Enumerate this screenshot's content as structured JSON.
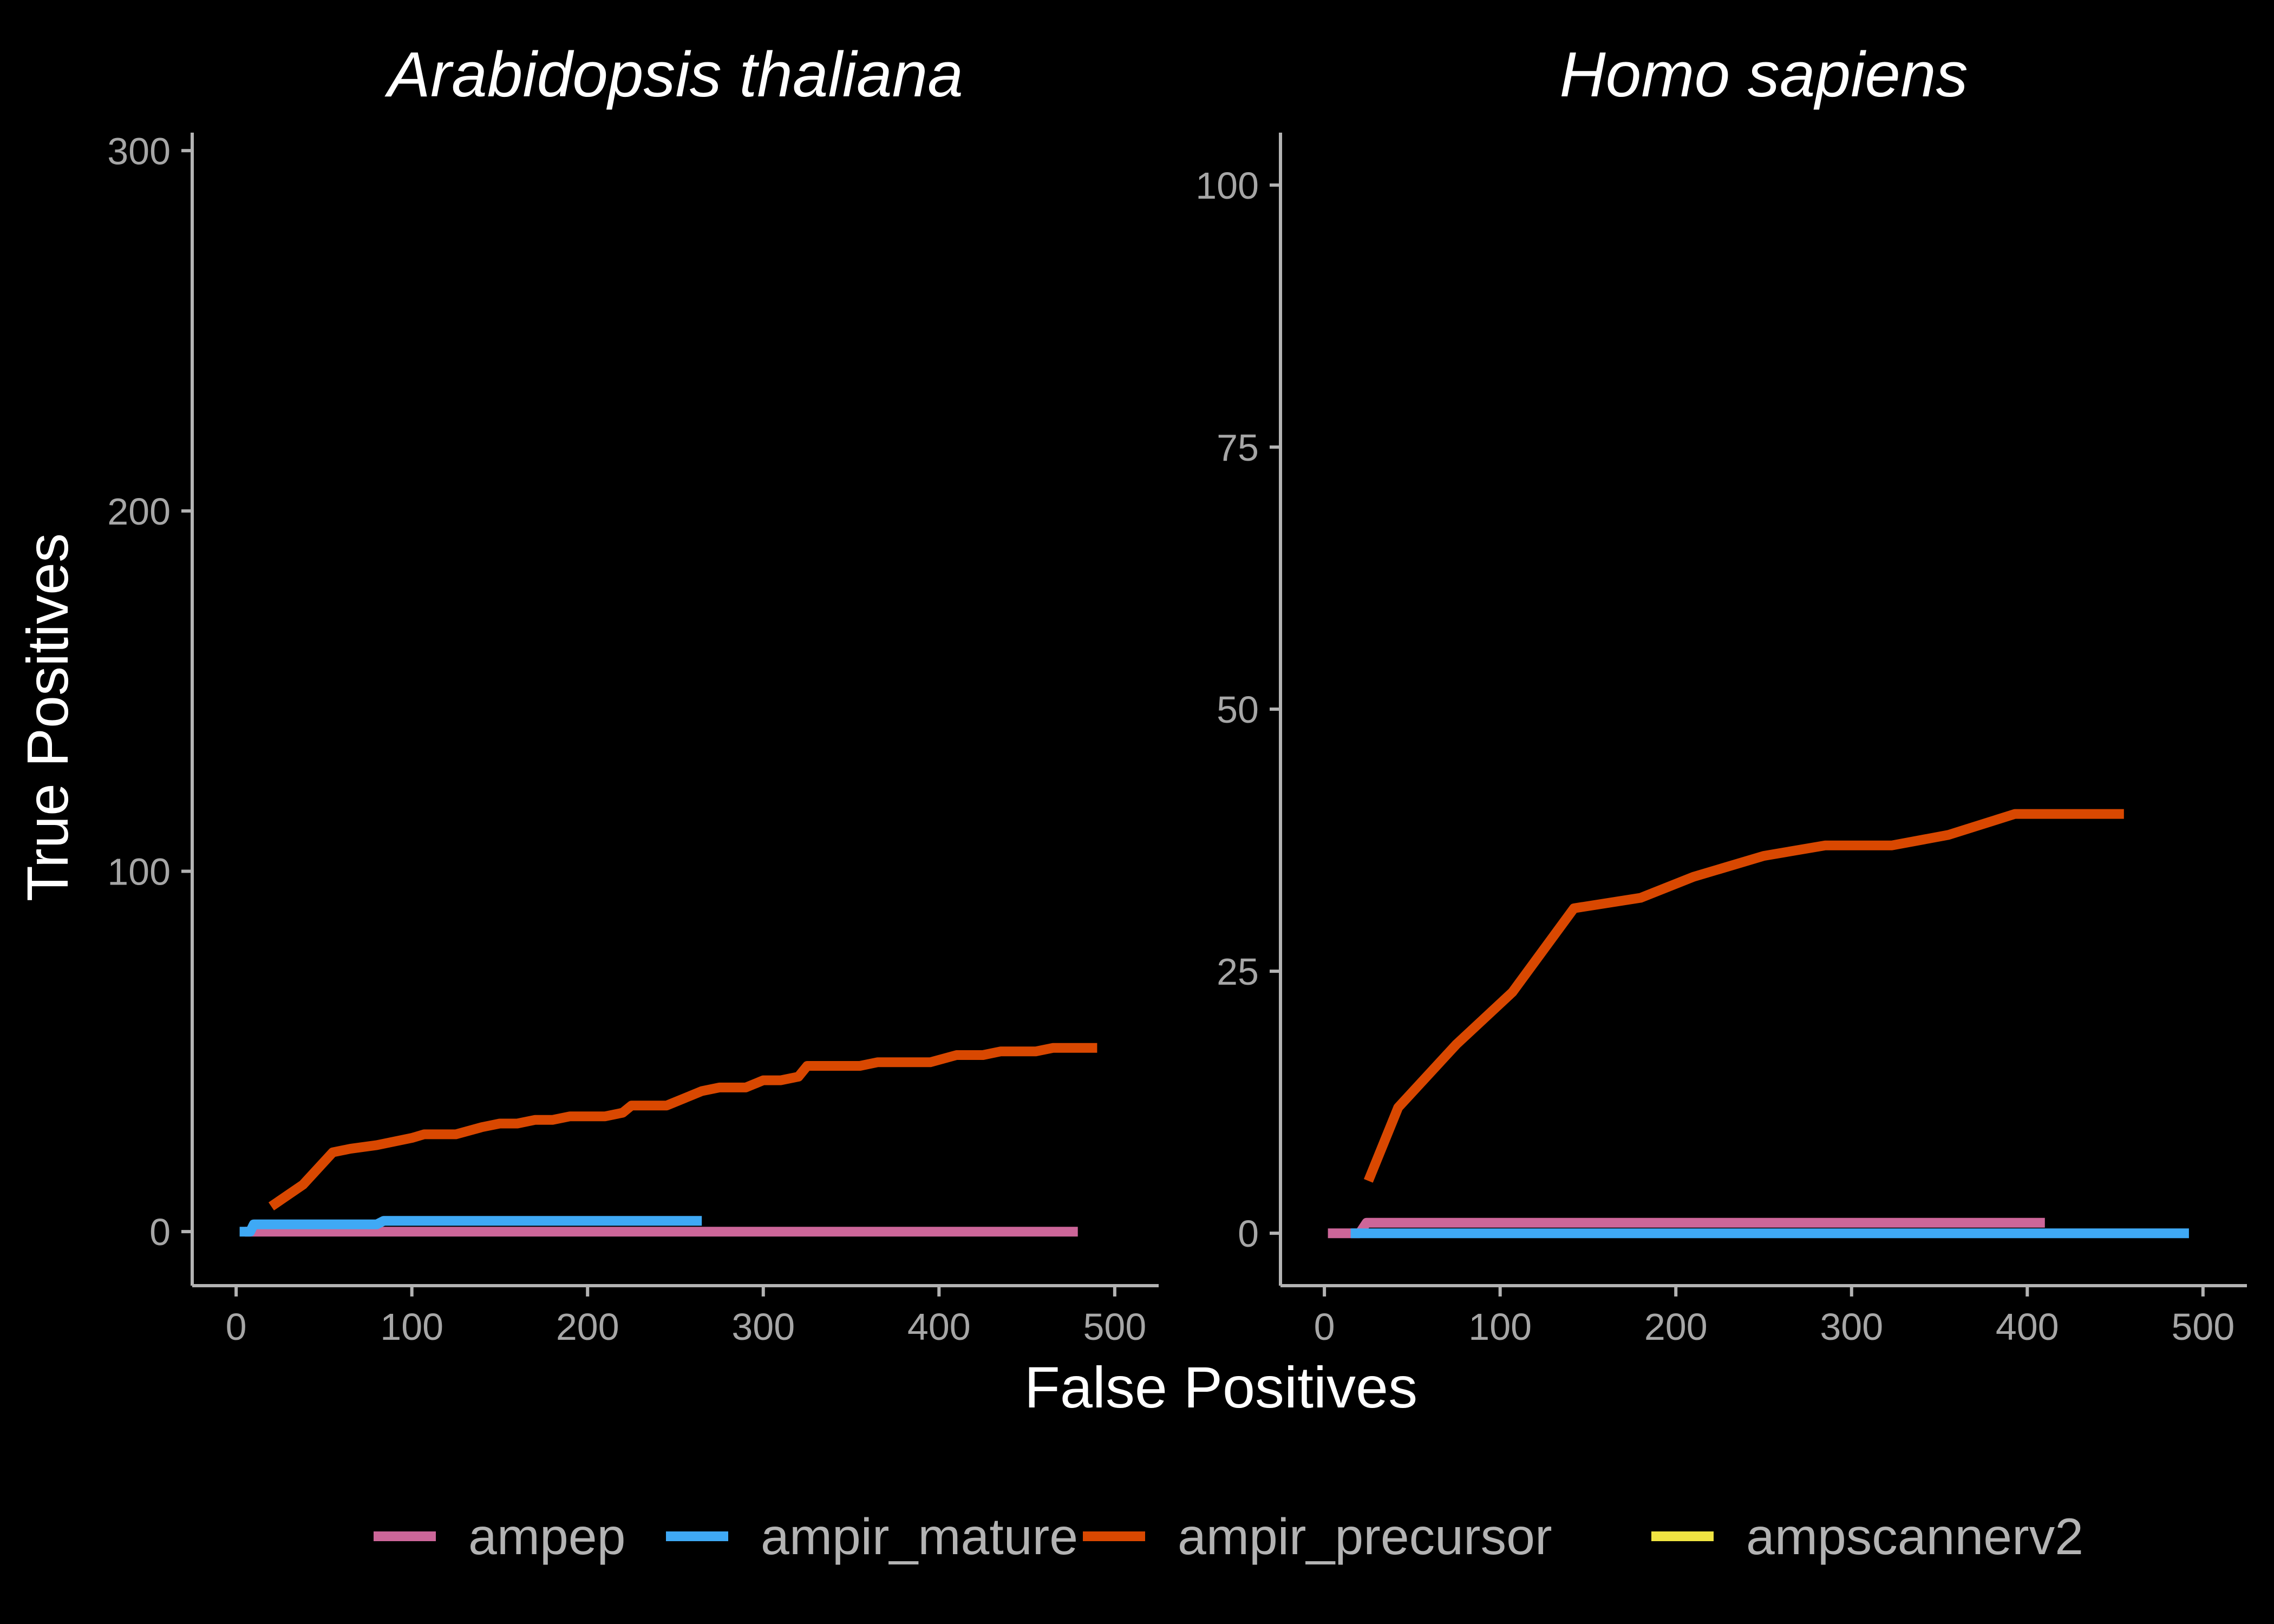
{
  "chart_data": {
    "type": "line",
    "xlabel": "False Positives",
    "ylabel": "True Positives",
    "legend": {
      "placement": "bottom",
      "entries": [
        {
          "name": "ampep",
          "color": "#cc6699"
        },
        {
          "name": "ampir_mature",
          "color": "#3fa9f5"
        },
        {
          "name": "ampir_precursor",
          "color": "#d94801"
        },
        {
          "name": "ampscannerv2",
          "color": "#f0e442"
        }
      ]
    },
    "panels": [
      {
        "title": "Arabidopsis thaliana",
        "xlim": [
          -25,
          525
        ],
        "ylim": [
          -15,
          305
        ],
        "xticks": [
          0,
          100,
          200,
          300,
          400,
          500
        ],
        "yticks": [
          0,
          100,
          200,
          300
        ],
        "series": [
          {
            "name": "ampep",
            "color": "#cc6699",
            "points": [
              [
                5,
                0
              ],
              [
                479,
                0
              ]
            ]
          },
          {
            "name": "ampir_mature",
            "color": "#3fa9f5",
            "points": [
              [
                2,
                0
              ],
              [
                8,
                0
              ],
              [
                10,
                2
              ],
              [
                80,
                2
              ],
              [
                84,
                3
              ],
              [
                265,
                3
              ]
            ]
          },
          {
            "name": "ampir_precursor",
            "color": "#d94801",
            "points": [
              [
                20,
                7
              ],
              [
                38,
                13
              ],
              [
                55,
                22
              ],
              [
                65,
                23
              ],
              [
                80,
                24
              ],
              [
                100,
                26
              ],
              [
                107,
                27
              ],
              [
                125,
                27
              ],
              [
                140,
                29
              ],
              [
                150,
                30
              ],
              [
                160,
                30
              ],
              [
                170,
                31
              ],
              [
                180,
                31
              ],
              [
                190,
                32
              ],
              [
                210,
                32
              ],
              [
                220,
                33
              ],
              [
                225,
                35
              ],
              [
                245,
                35
              ],
              [
                255,
                37
              ],
              [
                265,
                39
              ],
              [
                275,
                40
              ],
              [
                290,
                40
              ],
              [
                300,
                42
              ],
              [
                310,
                42
              ],
              [
                320,
                43
              ],
              [
                325,
                46
              ],
              [
                355,
                46
              ],
              [
                365,
                47
              ],
              [
                395,
                47
              ],
              [
                410,
                49
              ],
              [
                425,
                49
              ],
              [
                435,
                50
              ],
              [
                455,
                50
              ],
              [
                465,
                51
              ],
              [
                490,
                51
              ]
            ]
          },
          {
            "name": "ampscannerv2",
            "color": "#f0e442",
            "points": []
          }
        ]
      },
      {
        "title": "Homo sapiens",
        "xlim": [
          -25,
          525
        ],
        "ylim": [
          -5,
          105
        ],
        "xticks": [
          0,
          100,
          200,
          300,
          400,
          500
        ],
        "yticks": [
          0,
          25,
          50,
          75,
          100
        ],
        "series": [
          {
            "name": "ampep",
            "color": "#cc6699",
            "points": [
              [
                2,
                0
              ],
              [
                20,
                0
              ],
              [
                24,
                1
              ],
              [
                410,
                1
              ]
            ]
          },
          {
            "name": "ampir_mature",
            "color": "#3fa9f5",
            "points": [
              [
                15,
                0
              ],
              [
                492,
                0
              ]
            ]
          },
          {
            "name": "ampir_precursor",
            "color": "#d94801",
            "points": [
              [
                25,
                5
              ],
              [
                42,
                12
              ],
              [
                75,
                18
              ],
              [
                107,
                23
              ],
              [
                142,
                31
              ],
              [
                180,
                32
              ],
              [
                210,
                34
              ],
              [
                250,
                36
              ],
              [
                285,
                37
              ],
              [
                323,
                37
              ],
              [
                355,
                38
              ],
              [
                393,
                40
              ],
              [
                455,
                40
              ]
            ]
          },
          {
            "name": "ampscannerv2",
            "color": "#f0e442",
            "points": []
          }
        ]
      }
    ]
  }
}
